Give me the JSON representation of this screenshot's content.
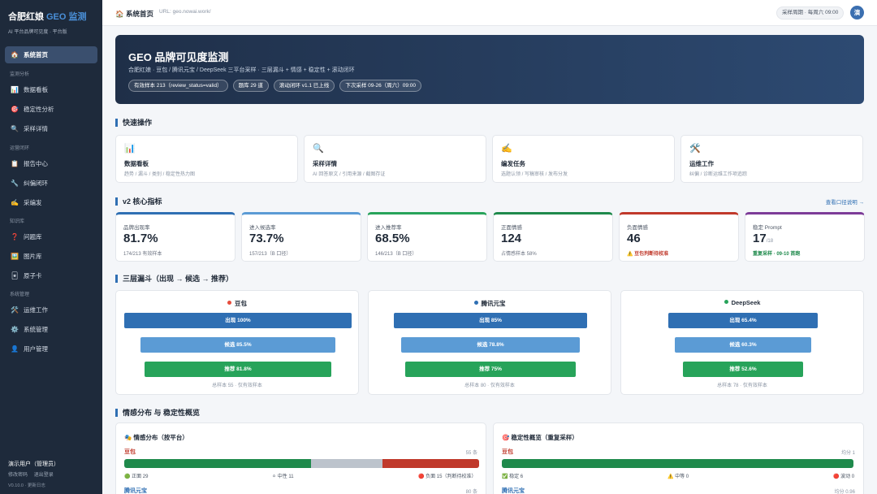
{
  "sidebar": {
    "brand": "合肥红娘",
    "brand_geo": "GEO 监测",
    "subtitle": "AI 平台品牌可见度 · 平台版",
    "home": {
      "icon": "🏠",
      "label": "系统首页"
    },
    "sections": [
      {
        "title": "监测分析",
        "items": [
          {
            "icon": "📊",
            "label": "数据看板"
          },
          {
            "icon": "🎯",
            "label": "稳定性分析"
          },
          {
            "icon": "🔍",
            "label": "采样详情"
          }
        ]
      },
      {
        "title": "运营闭环",
        "items": [
          {
            "icon": "📋",
            "label": "报告中心"
          },
          {
            "icon": "🔧",
            "label": "纠偏闭环"
          },
          {
            "icon": "✍️",
            "label": "采编发"
          }
        ]
      },
      {
        "title": "知识库",
        "items": [
          {
            "icon": "❓",
            "label": "问题库"
          },
          {
            "icon": "🖼️",
            "label": "图片库"
          },
          {
            "icon": "🃏",
            "label": "原子卡"
          }
        ]
      },
      {
        "title": "系统管理",
        "items": [
          {
            "icon": "🛠️",
            "label": "运维工作"
          },
          {
            "icon": "⚙️",
            "label": "系统管理"
          },
          {
            "icon": "👤",
            "label": "用户管理"
          }
        ]
      }
    ],
    "user": "演示用户（管理员）",
    "links": [
      "修改密码",
      "退出登录"
    ],
    "version": "V0.10.0 · 更新日志"
  },
  "topbar": {
    "title": "🏠 系统首页",
    "url": "URL: geo.nowai.work/",
    "schedule": "采样周期 · 每周六 09:00",
    "avatar": "演"
  },
  "hero": {
    "title": "GEO 品牌可见度监测",
    "subtitle": "合肥红娘 · 豆包 / 腾讯元宝 / DeepSeek 三平台采样 · 三层漏斗 + 情感 + 稳定性 + 滚动闭环",
    "chips": [
      "有效样本 213（review_status=valid）",
      "题库 29 道",
      "滚动闭环 v1.1 已上线",
      "下次采样 09-26（周六）09:00"
    ]
  },
  "quick": {
    "title": "快速操作",
    "cards": [
      {
        "icon": "📊",
        "title": "数据看板",
        "desc": "趋势 / 漏斗 / 类别 / 稳定性热力图"
      },
      {
        "icon": "🔍",
        "title": "采样详情",
        "desc": "AI 回答原文 / 引用来源 / 截图存证"
      },
      {
        "icon": "✍️",
        "title": "编发任务",
        "desc": "选题认领 / 写稿审核 / 发布分发"
      },
      {
        "icon": "🛠️",
        "title": "运维工作",
        "desc": "纠偏 / 诊断运维工作项追踪"
      }
    ]
  },
  "metrics": {
    "title": "v2 核心指标",
    "link": "查看口径说明 →",
    "cards": [
      {
        "label": "品牌出现率",
        "value": "81.7%",
        "sub": "174/213 有效样本",
        "color": "#2f6fb3"
      },
      {
        "label": "进入候选率",
        "value": "73.7%",
        "sub": "157/213（B 口径）",
        "color": "#5b9bd5"
      },
      {
        "label": "进入推荐率",
        "value": "68.5%",
        "sub": "146/213（B 口径）",
        "color": "#27a35a"
      },
      {
        "label": "正面情感",
        "value": "124",
        "sub": "占情感样本 58%",
        "color": "#1f8a4c"
      },
      {
        "label": "负面情感",
        "value": "46",
        "sub": "⚠️ 豆包判断待校准",
        "color": "#c0392b"
      },
      {
        "label": "稳定 Prompt",
        "value": "17",
        "value_suffix": "/18",
        "sub": "重复采样 · 09-10 首跑",
        "color": "#7d3c98"
      }
    ]
  },
  "funnel": {
    "title": "三层漏斗（出现 → 候选 → 推荐）",
    "platforms": [
      {
        "name": "豆包",
        "dot": "#e74c3c",
        "appear": "出现 100%",
        "candidate": "候选 85.5%",
        "recommend": "推荐 81.8%",
        "vals": [
          100,
          85.5,
          81.8
        ],
        "note": "总样本 55 · 仅有效样本"
      },
      {
        "name": "腾讯元宝",
        "dot": "#2f6fb3",
        "appear": "出现 85%",
        "candidate": "候选 78.8%",
        "recommend": "推荐 75%",
        "vals": [
          85,
          78.8,
          75
        ],
        "note": "总样本 80 · 仅有效样本"
      },
      {
        "name": "DeepSeek",
        "dot": "#27a35a",
        "appear": "出现 65.4%",
        "candidate": "候选 60.3%",
        "recommend": "推荐 52.6%",
        "vals": [
          65.4,
          60.3,
          52.6
        ],
        "note": "总样本 78 · 仅有效样本"
      }
    ]
  },
  "sentiment": {
    "title": "情感分布 与 稳定性概览",
    "left": {
      "head": "🎭 情感分布（按平台）",
      "rows": [
        {
          "platform": "豆包",
          "count": "55 条",
          "pos": 29,
          "neu": 11,
          "neg": 15,
          "pos_label": "🟢 正面 29",
          "neu_label": "⚪ 中性 11",
          "neg_label": "🔴 负面 15（判断待校准）"
        },
        {
          "platform": "腾讯元宝",
          "count": "80 条"
        }
      ]
    },
    "right": {
      "head": "🎯 稳定性概览（重复采样）",
      "rows": [
        {
          "platform": "豆包",
          "score": "均分 1",
          "stable": 6,
          "mid": 0,
          "fluct": 0,
          "stable_label": "✅ 稳定 6",
          "mid_label": "⚠️ 中等 0",
          "fluct_label": "🔴 波动 0"
        },
        {
          "platform": "腾讯元宝",
          "score": "均分 0.96"
        }
      ]
    }
  },
  "colors": {
    "accent": "#2f6fb3",
    "positive": "#1f8a4c",
    "neutral": "#bcc3cc",
    "negative": "#c0392b",
    "stable": "#1f8a4c"
  }
}
